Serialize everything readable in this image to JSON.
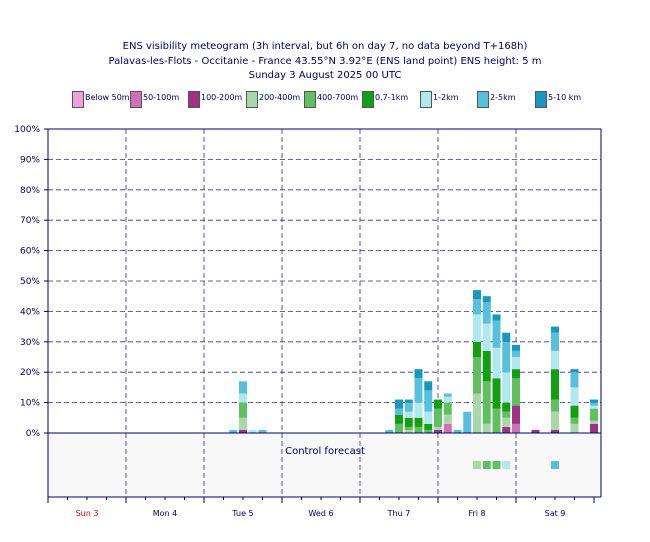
{
  "title_lines": [
    "ENS visibility meteogram (3h interval, but 6h on day 7, no data beyond T+168h)",
    "Palavas-les-Flots - Occitanie - France 43.55°N 3.92°E (ENS land point) ENS height: 5 m",
    "Sunday  3 August 2025 00 UTC"
  ],
  "legend": [
    {
      "label": "Below 50m",
      "color": "#f0a0d8"
    },
    {
      "label": "50-100m",
      "color": "#d070b8"
    },
    {
      "label": "100-200m",
      "color": "#a03080"
    },
    {
      "label": "200-400m",
      "color": "#a8d8a8"
    },
    {
      "label": "400-700m",
      "color": "#60c060"
    },
    {
      "label": "0.7-1km",
      "color": "#10a010"
    },
    {
      "label": "1-2km",
      "color": "#b0e8f0"
    },
    {
      "label": "2-5km",
      "color": "#58c0dc"
    },
    {
      "label": "5-10 km",
      "color": "#1898c0"
    }
  ],
  "control_label": "Control forecast",
  "chart_data": {
    "type": "bar",
    "stacked": true,
    "ylim": [
      0,
      100
    ],
    "yticks": [
      "0%",
      "10%",
      "20%",
      "30%",
      "40%",
      "50%",
      "60%",
      "70%",
      "80%",
      "90%",
      "100%"
    ],
    "x_hours_range": [
      0,
      168
    ],
    "days": [
      {
        "label": "Sun 3",
        "color": "#dd0000"
      },
      {
        "label": "Mon 4",
        "color": "#000066"
      },
      {
        "label": "Tue 5",
        "color": "#000066"
      },
      {
        "label": "Wed 6",
        "color": "#000066"
      },
      {
        "label": "Thu 7",
        "color": "#000066"
      },
      {
        "label": "Fri 8",
        "color": "#000066"
      },
      {
        "label": "Sat 9",
        "color": "#000066"
      }
    ],
    "series_order": [
      "Below 50m",
      "50-100m",
      "100-200m",
      "200-400m",
      "400-700m",
      "0.7-1km",
      "1-2km",
      "2-5km",
      "5-10 km"
    ],
    "bars": [
      {
        "h": 57,
        "v": [
          0,
          0,
          0,
          0,
          0,
          0,
          0,
          1,
          0
        ]
      },
      {
        "h": 60,
        "v": [
          0,
          0,
          1,
          4,
          5,
          0,
          3,
          4,
          0
        ]
      },
      {
        "h": 63,
        "v": [
          0,
          0,
          0,
          0,
          0,
          0,
          1,
          0,
          0
        ]
      },
      {
        "h": 66,
        "v": [
          0,
          0,
          0,
          0,
          0,
          0,
          0,
          1,
          0
        ]
      },
      {
        "h": 105,
        "v": [
          0,
          0,
          0,
          0,
          0,
          0,
          0,
          1,
          0
        ]
      },
      {
        "h": 108,
        "v": [
          0,
          0,
          0,
          0,
          3,
          3,
          0,
          2,
          3
        ]
      },
      {
        "h": 111,
        "v": [
          0,
          0,
          0,
          1,
          1,
          3,
          2,
          3,
          1
        ]
      },
      {
        "h": 114,
        "v": [
          0,
          0,
          0,
          0,
          2,
          3,
          5,
          8,
          3
        ]
      },
      {
        "h": 117,
        "v": [
          0,
          0,
          0,
          0,
          1,
          2,
          4,
          7,
          3
        ]
      },
      {
        "h": 120,
        "v": [
          0,
          0,
          1,
          1,
          6,
          3,
          0,
          0,
          0
        ]
      },
      {
        "h": 123,
        "v": [
          0,
          3,
          0,
          3,
          4,
          0,
          2,
          1,
          0
        ]
      },
      {
        "h": 126,
        "v": [
          0,
          0,
          0,
          0,
          0,
          0,
          0,
          1,
          0
        ]
      },
      {
        "h": 129,
        "v": [
          0,
          0,
          0,
          0,
          0,
          0,
          0,
          7,
          0
        ]
      },
      {
        "h": 132,
        "v": [
          0,
          0,
          0,
          13,
          12,
          5,
          9,
          5,
          3
        ]
      },
      {
        "h": 135,
        "v": [
          0,
          0,
          0,
          3,
          14,
          10,
          9,
          7,
          2
        ]
      },
      {
        "h": 138,
        "v": [
          0,
          0,
          0,
          0,
          8,
          10,
          10,
          9,
          2
        ]
      },
      {
        "h": 141,
        "v": [
          0,
          0,
          2,
          3,
          2,
          3,
          10,
          10,
          3
        ]
      },
      {
        "h": 144,
        "v": [
          0,
          3,
          6,
          0,
          9,
          3,
          4,
          2,
          2
        ]
      },
      {
        "h": 150,
        "v": [
          0,
          0,
          1,
          0,
          0,
          0,
          0,
          0,
          0
        ]
      },
      {
        "h": 156,
        "v": [
          0,
          0,
          1,
          6,
          4,
          10,
          6,
          6,
          2
        ]
      },
      {
        "h": 162,
        "v": [
          0,
          0,
          0,
          3,
          2,
          4,
          6,
          5,
          1
        ]
      },
      {
        "h": 168,
        "v": [
          0,
          0,
          3,
          1,
          4,
          0,
          1,
          1,
          1
        ]
      }
    ],
    "control": [
      {
        "h": 132,
        "category": "200-400m"
      },
      {
        "h": 135,
        "category": "400-700m"
      },
      {
        "h": 138,
        "category": "400-700m"
      },
      {
        "h": 141,
        "category": "1-2km"
      },
      {
        "h": 156,
        "category": "2-5km"
      }
    ]
  }
}
